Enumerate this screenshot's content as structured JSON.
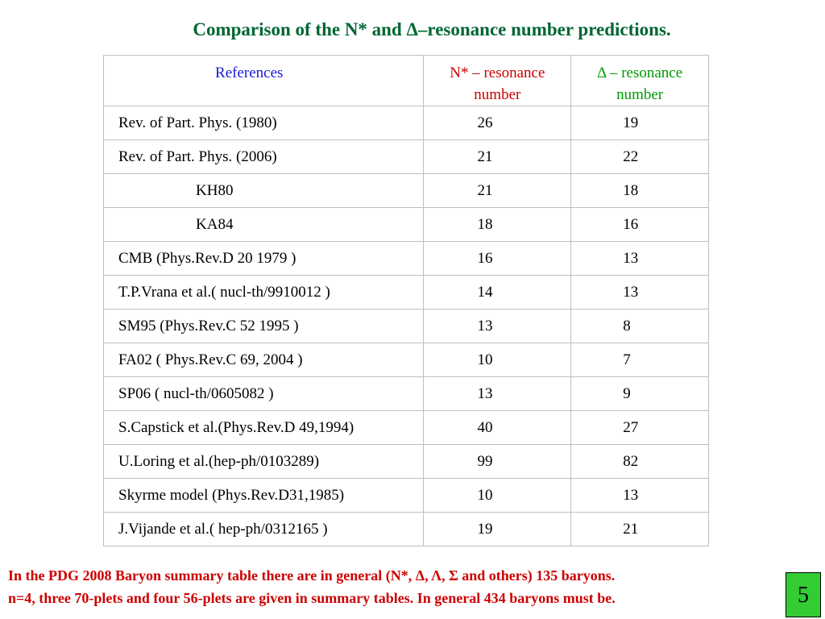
{
  "title": "Comparison of the N* and Δ–resonance number predictions.",
  "table": {
    "headers": {
      "references": "References",
      "n_line1": "N* – resonance",
      "n_line2": "number",
      "d_line1": "Δ – resonance",
      "d_line2": "number"
    },
    "rows": [
      {
        "ref": "Rev. of  Part. Phys. (1980)",
        "n": "26",
        "d": "19"
      },
      {
        "ref": "Rev. of  Part. Phys. (2006)",
        "n": "21",
        "d": "22"
      },
      {
        "ref": "KH80",
        "n": "21",
        "d": "18"
      },
      {
        "ref": "KA84",
        "n": "18",
        "d": "16"
      },
      {
        "ref": "CMB (Phys.Rev.D 20 1979 )",
        "n": "16",
        "d": "13"
      },
      {
        "ref": "T.P.Vrana et al.( nucl-th/9910012 )",
        "n": "14",
        "d": "13"
      },
      {
        "ref": "SM95 (Phys.Rev.C 52 1995 )",
        "n": "13",
        "d": "8"
      },
      {
        "ref": "FA02 ( Phys.Rev.C 69, 2004 )",
        "n": "10",
        "d": "7"
      },
      {
        "ref": "SP06 ( nucl-th/0605082 )",
        "n": "13",
        "d": "9"
      },
      {
        "ref": "S.Capstick et al.(Phys.Rev.D 49,1994)",
        "n": "40",
        "d": "27"
      },
      {
        "ref": "U.Loring et al.(hep-ph/0103289)",
        "n": "99",
        "d": "82"
      },
      {
        "ref": "Skyrme model (Phys.Rev.D31,1985)",
        "n": "10",
        "d": "13"
      },
      {
        "ref": "J.Vijande et al.( hep-ph/0312165 )",
        "n": "19",
        "d": "21"
      }
    ]
  },
  "footer": {
    "line1": "In the PDG 2008 Baryon summary table there are in general (N*, Δ, Λ, Σ and others) 135 baryons.",
    "line2": "n=4, three 70-plets and four 56-plets are given in summary tables. In general 434 baryons must be."
  },
  "page_number": "5",
  "colors": {
    "title": "#006633",
    "references_header": "#1a1ad6",
    "n_header": "#cc0000",
    "delta_header": "#009900",
    "footer_text": "#cc0000",
    "page_box": "#33cc33"
  }
}
